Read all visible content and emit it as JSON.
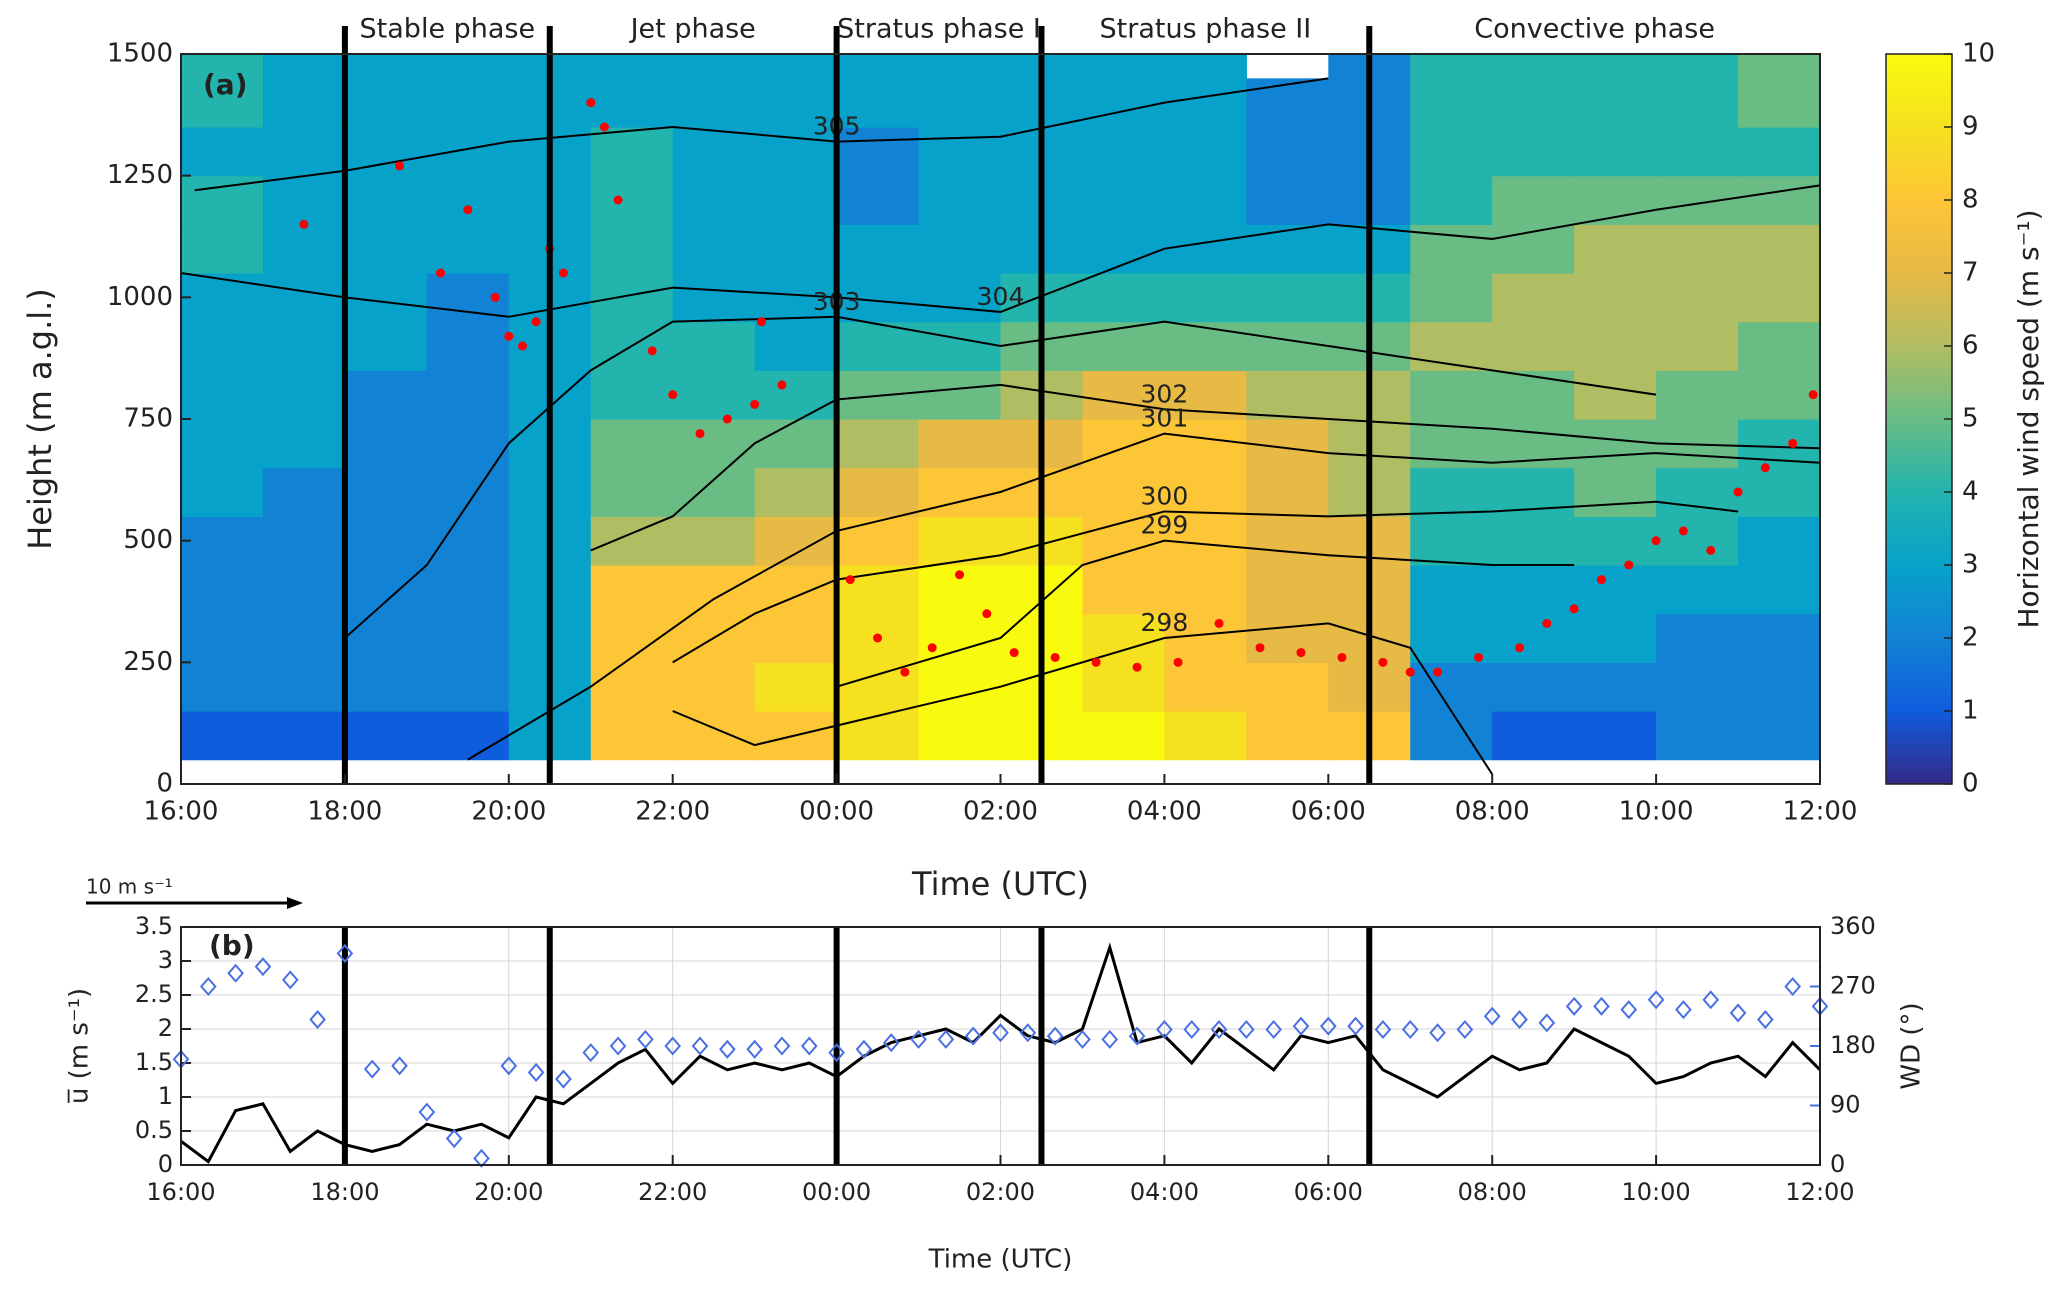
{
  "chart_data": [
    {
      "type": "heatmap",
      "panel_label": "(a)",
      "xlabel": "Time (UTC)",
      "ylabel": "Height (m a.g.l.)",
      "xlim": [
        0,
        1200
      ],
      "xticks": [
        {
          "value": 0,
          "label": "16:00"
        },
        {
          "value": 120,
          "label": "18:00"
        },
        {
          "value": 240,
          "label": "20:00"
        },
        {
          "value": 360,
          "label": "22:00"
        },
        {
          "value": 480,
          "label": "00:00"
        },
        {
          "value": 600,
          "label": "02:00"
        },
        {
          "value": 720,
          "label": "04:00"
        },
        {
          "value": 840,
          "label": "06:00"
        },
        {
          "value": 960,
          "label": "08:00"
        },
        {
          "value": 1080,
          "label": "10:00"
        },
        {
          "value": 1200,
          "label": "12:00"
        }
      ],
      "ylim": [
        0,
        1500
      ],
      "yticks": [
        0,
        250,
        500,
        750,
        1000,
        1250,
        1500
      ],
      "x_bins": [
        0,
        60,
        120,
        180,
        240,
        300,
        360,
        420,
        480,
        540,
        600,
        660,
        720,
        780,
        840,
        900,
        960,
        1020,
        1080,
        1140,
        1200
      ],
      "y_bins": [
        50,
        150,
        250,
        350,
        450,
        550,
        650,
        750,
        850,
        950,
        1050,
        1150,
        1250,
        1350,
        1450,
        1500
      ],
      "z": [
        [
          1,
          1,
          1,
          1,
          3,
          8,
          8,
          8,
          9,
          10,
          10,
          10,
          9,
          8,
          8,
          2,
          1,
          1,
          2,
          2
        ],
        [
          2,
          2,
          2,
          2,
          3,
          8,
          8,
          9,
          9,
          10,
          10,
          9,
          8,
          8,
          7,
          2,
          2,
          2,
          2,
          2
        ],
        [
          2,
          2,
          2,
          2,
          3,
          8,
          8,
          8,
          9,
          10,
          10,
          9,
          8,
          7,
          7,
          3,
          3,
          3,
          2,
          2
        ],
        [
          2,
          2,
          2,
          2,
          3,
          8,
          8,
          8,
          9,
          10,
          10,
          8,
          8,
          7,
          7,
          3,
          3,
          3,
          3,
          3
        ],
        [
          2,
          2,
          2,
          2,
          3,
          6,
          6,
          7,
          8,
          9,
          9,
          8,
          8,
          7,
          7,
          4,
          4,
          4,
          4,
          3
        ],
        [
          3,
          2,
          2,
          2,
          3,
          5,
          5,
          6,
          7,
          8,
          8,
          8,
          8,
          7,
          6,
          4,
          4,
          5,
          4,
          4
        ],
        [
          3,
          3,
          2,
          2,
          3,
          5,
          5,
          5,
          6,
          7,
          7,
          8,
          8,
          7,
          6,
          5,
          5,
          5,
          5,
          4
        ],
        [
          3,
          3,
          2,
          2,
          3,
          4,
          4,
          4,
          5,
          5,
          6,
          7,
          7,
          6,
          6,
          5,
          5,
          6,
          5,
          5
        ],
        [
          3,
          3,
          3,
          2,
          3,
          4,
          4,
          3,
          4,
          4,
          5,
          5,
          5,
          5,
          5,
          6,
          6,
          6,
          6,
          5
        ],
        [
          3,
          3,
          3,
          2,
          3,
          4,
          3,
          3,
          3,
          3,
          4,
          4,
          4,
          4,
          4,
          5,
          6,
          6,
          6,
          6
        ],
        [
          4,
          3,
          3,
          3,
          3,
          4,
          3,
          3,
          3,
          3,
          3,
          3,
          3,
          3,
          3,
          5,
          5,
          6,
          6,
          6
        ],
        [
          4,
          3,
          3,
          3,
          3,
          4,
          3,
          3,
          2,
          3,
          3,
          3,
          3,
          2,
          2,
          4,
          5,
          5,
          5,
          5
        ],
        [
          3,
          3,
          3,
          3,
          3,
          4,
          3,
          3,
          2,
          3,
          3,
          3,
          3,
          2,
          2,
          4,
          4,
          4,
          4,
          4
        ],
        [
          4,
          3,
          3,
          3,
          3,
          3,
          3,
          3,
          3,
          3,
          3,
          3,
          3,
          2,
          2,
          4,
          4,
          4,
          4,
          5
        ],
        [
          4,
          3,
          3,
          3,
          3,
          3,
          3,
          3,
          3,
          3,
          3,
          3,
          3,
          null,
          2,
          4,
          4,
          4,
          4,
          5
        ]
      ],
      "colormap": [
        "#352a87",
        "#0f5cdd",
        "#1283d4",
        "#07a2c9",
        "#23b4ad",
        "#69bd84",
        "#b1bd62",
        "#e7b945",
        "#fdc636",
        "#f5e11f",
        "#f9fb0e"
      ],
      "colorbar": {
        "label": "Horizontal wind speed (m s⁻¹)",
        "zlim": [
          0,
          10
        ],
        "zticks": [
          0,
          1,
          2,
          3,
          4,
          5,
          6,
          7,
          8,
          9,
          10
        ]
      },
      "phases": [
        {
          "name": "Stable phase",
          "start": 120,
          "end": 270
        },
        {
          "name": "Jet phase",
          "start": 270,
          "end": 480
        },
        {
          "name": "Stratus phase I",
          "start": 480,
          "end": 630
        },
        {
          "name": "Stratus phase II",
          "start": 630,
          "end": 870
        },
        {
          "name": "Convective phase",
          "start": 870,
          "end": 1200
        }
      ],
      "points": {
        "color": "#ff0000",
        "x": [
          90,
          160,
          190,
          210,
          230,
          240,
          250,
          260,
          270,
          280,
          300,
          310,
          320,
          345,
          360,
          380,
          400,
          420,
          440,
          425,
          490,
          510,
          530,
          550,
          570,
          590,
          610,
          640,
          670,
          700,
          730,
          760,
          790,
          820,
          850,
          880,
          900,
          920,
          950,
          980,
          1000,
          1020,
          1040,
          1060,
          1080,
          1100,
          1120,
          1140,
          1160,
          1180,
          1195
        ],
        "y": [
          1150,
          1270,
          1050,
          1180,
          1000,
          920,
          900,
          950,
          1100,
          1050,
          1400,
          1350,
          1200,
          890,
          800,
          720,
          750,
          780,
          820,
          950,
          420,
          300,
          230,
          280,
          430,
          350,
          270,
          260,
          250,
          240,
          250,
          330,
          280,
          270,
          260,
          250,
          230,
          230,
          260,
          280,
          330,
          360,
          420,
          450,
          500,
          520,
          480,
          600,
          650,
          700,
          800
        ]
      },
      "contour_color": "#000000",
      "contours": [
        {
          "level": 305,
          "x": [
            10,
            120,
            240,
            360,
            480,
            600,
            720,
            840
          ],
          "y": [
            1220,
            1260,
            1320,
            1350,
            1320,
            1330,
            1400,
            1450
          ]
        },
        {
          "level": 304,
          "x": [
            0,
            120,
            240,
            360,
            480,
            600,
            720,
            840,
            960,
            1080,
            1200
          ],
          "y": [
            1050,
            1000,
            960,
            1020,
            1000,
            970,
            1100,
            1150,
            1120,
            1180,
            1230
          ]
        },
        {
          "level": 303,
          "x": [
            120,
            180,
            240,
            300,
            360,
            480,
            600,
            720,
            840,
            960,
            1080
          ],
          "y": [
            300,
            450,
            700,
            850,
            950,
            960,
            900,
            950,
            900,
            850,
            800
          ]
        },
        {
          "level": 302,
          "x": [
            300,
            360,
            420,
            480,
            600,
            720,
            840,
            960,
            1080,
            1200
          ],
          "y": [
            480,
            550,
            700,
            790,
            820,
            770,
            750,
            730,
            700,
            690
          ]
        },
        {
          "level": 301,
          "x": [
            210,
            300,
            390,
            480,
            600,
            720,
            840,
            960,
            1080,
            1200
          ],
          "y": [
            50,
            200,
            380,
            520,
            600,
            720,
            680,
            660,
            680,
            660
          ]
        },
        {
          "level": 300,
          "x": [
            360,
            420,
            480,
            600,
            720,
            840,
            960,
            1080,
            1140
          ],
          "y": [
            250,
            350,
            420,
            470,
            560,
            550,
            560,
            580,
            560
          ]
        },
        {
          "level": 299,
          "x": [
            480,
            600,
            660,
            720,
            840,
            960,
            1020
          ],
          "y": [
            200,
            300,
            450,
            500,
            470,
            450,
            450
          ]
        },
        {
          "level": 298,
          "x": [
            360,
            420,
            480,
            600,
            720,
            840,
            900,
            960
          ],
          "y": [
            150,
            80,
            120,
            200,
            300,
            330,
            280,
            20
          ]
        }
      ],
      "wind_scale": {
        "label": "10 m s⁻¹",
        "value": 10
      }
    },
    {
      "type": "line",
      "panel_label": "(b)",
      "xlabel": "Time (UTC)",
      "ylabel": "u̅ (m s⁻¹)",
      "y2label": "WD (°)",
      "xlim": [
        0,
        1200
      ],
      "xticks": [
        {
          "value": 0,
          "label": "16:00"
        },
        {
          "value": 120,
          "label": "18:00"
        },
        {
          "value": 240,
          "label": "20:00"
        },
        {
          "value": 360,
          "label": "22:00"
        },
        {
          "value": 480,
          "label": "00:00"
        },
        {
          "value": 600,
          "label": "02:00"
        },
        {
          "value": 720,
          "label": "04:00"
        },
        {
          "value": 840,
          "label": "06:00"
        },
        {
          "value": 960,
          "label": "08:00"
        },
        {
          "value": 1080,
          "label": "10:00"
        },
        {
          "value": 1200,
          "label": "12:00"
        }
      ],
      "ylim": [
        0,
        3.5
      ],
      "yticks": [
        0,
        0.5,
        1,
        1.5,
        2,
        2.5,
        3,
        3.5
      ],
      "y2lim": [
        0,
        360
      ],
      "y2ticks": [
        0,
        90,
        180,
        270,
        360
      ],
      "grid": true,
      "phase_lines": [
        120,
        270,
        480,
        630,
        870
      ],
      "x": [
        0,
        20,
        40,
        60,
        80,
        100,
        120,
        140,
        160,
        180,
        200,
        220,
        240,
        260,
        280,
        300,
        320,
        340,
        360,
        380,
        400,
        420,
        440,
        460,
        480,
        500,
        520,
        540,
        560,
        580,
        600,
        620,
        640,
        660,
        680,
        700,
        720,
        740,
        760,
        780,
        800,
        820,
        840,
        860,
        880,
        900,
        920,
        940,
        960,
        980,
        1000,
        1020,
        1040,
        1060,
        1080,
        1100,
        1120,
        1140,
        1160,
        1180,
        1200
      ],
      "series": [
        {
          "color": "#000000",
          "values": [
            0.35,
            0.05,
            0.8,
            0.9,
            0.2,
            0.5,
            0.3,
            0.2,
            0.3,
            0.6,
            0.5,
            0.6,
            0.4,
            1.0,
            0.9,
            1.2,
            1.5,
            1.7,
            1.2,
            1.6,
            1.4,
            1.5,
            1.4,
            1.5,
            1.3,
            1.6,
            1.8,
            1.9,
            2.0,
            1.8,
            2.2,
            1.9,
            1.8,
            2.0,
            3.2,
            1.8,
            1.9,
            1.5,
            2.0,
            1.7,
            1.4,
            1.9,
            1.8,
            1.9,
            1.4,
            1.2,
            1.0,
            1.3,
            1.6,
            1.4,
            1.5,
            2.0,
            1.8,
            1.6,
            1.2,
            1.3,
            1.5,
            1.6,
            1.3,
            1.8,
            1.4
          ]
        },
        {
          "color": "#4a6fe3",
          "axis": "y2",
          "marker": "diamond",
          "values": [
            160,
            270,
            290,
            300,
            280,
            220,
            320,
            145,
            150,
            80,
            40,
            10,
            150,
            140,
            130,
            170,
            180,
            190,
            180,
            180,
            175,
            175,
            180,
            180,
            170,
            175,
            185,
            190,
            190,
            195,
            200,
            200,
            195,
            190,
            190,
            195,
            205,
            205,
            205,
            205,
            205,
            210,
            210,
            210,
            205,
            205,
            200,
            205,
            225,
            220,
            215,
            240,
            240,
            235,
            250,
            235,
            250,
            230,
            220,
            270,
            240
          ]
        }
      ]
    }
  ]
}
